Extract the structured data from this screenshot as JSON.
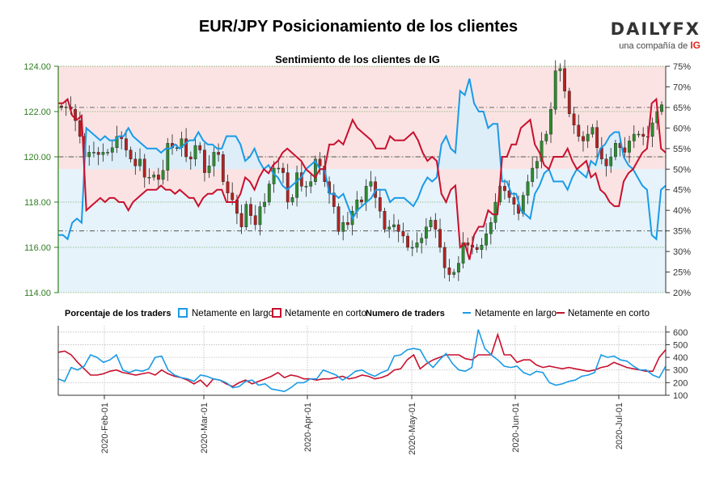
{
  "header": {
    "title": "EUR/JPY Posicionamiento de los clientes",
    "brand_name": "DAILYFX",
    "brand_sub": "una compañía de",
    "brand_ig": "IG"
  },
  "colors": {
    "long": "#1a9be6",
    "short": "#c8102e",
    "long_fill": "#e6f3fb",
    "short_fill": "#fbe3e3",
    "candle_up": "#2e8b2e",
    "candle_down": "#b22222",
    "axis_left": "#2e7d1f"
  },
  "chart_data": [
    {
      "type": "candlestick+line",
      "title": "Sentimiento de los clientes de IG",
      "y_left": {
        "ticks": [
          "114.00",
          "116.00",
          "118.00",
          "120.00",
          "122.00",
          "124.00"
        ],
        "range": [
          114,
          124
        ]
      },
      "y_right": {
        "ticks": [
          "20%",
          "25%",
          "30%",
          "35%",
          "40%",
          "45%",
          "50%",
          "55%",
          "60%",
          "65%",
          "70%",
          "75%"
        ],
        "range": [
          20,
          75
        ]
      },
      "x_range": [
        "2020-01-16",
        "2020-07-14"
      ],
      "price_daily_close": [
        122.2,
        122.2,
        122.1,
        121.6,
        120.9,
        120.0,
        120.2,
        120.2,
        120.1,
        120.2,
        120.2,
        120.4,
        120.9,
        120.8,
        120.3,
        119.9,
        119.6,
        119.9,
        119.1,
        119.1,
        119.2,
        119.0,
        119.4,
        120.6,
        120.4,
        120.4,
        120.8,
        120.0,
        119.9,
        120.5,
        120.3,
        119.3,
        119.6,
        120.2,
        120.1,
        118.9,
        118.4,
        118.1,
        117.5,
        116.9,
        117.9,
        117.4,
        117.0,
        117.8,
        118.0,
        118.8,
        119.5,
        119.5,
        119.3,
        118.0,
        118.2,
        119.3,
        118.7,
        118.7,
        118.9,
        119.9,
        119.6,
        118.9,
        118.4,
        117.8,
        116.7,
        117.1,
        117.0,
        117.6,
        118.1,
        118.0,
        118.7,
        118.9,
        118.2,
        117.6,
        116.8,
        116.9,
        117.0,
        116.7,
        116.5,
        116.0,
        116.0,
        116.2,
        116.4,
        116.9,
        117.2,
        116.8,
        116.0,
        115.1,
        114.8,
        114.9,
        115.3,
        116.2,
        116.1,
        116.0,
        115.9,
        116.1,
        116.6,
        117.1,
        118.0,
        118.7,
        118.5,
        118.2,
        117.9,
        117.5,
        118.3,
        118.9,
        119.5,
        119.8,
        120.7,
        121.0,
        122.1,
        123.8,
        123.9,
        122.9,
        121.9,
        121.4,
        120.9,
        120.7,
        121.0,
        121.3,
        120.4,
        119.9,
        119.6,
        120.0,
        120.6,
        120.4,
        120.2,
        120.7,
        121.0,
        121.0,
        120.9,
        120.9,
        121.5,
        122.0,
        122.3
      ],
      "long_pct_series": [
        "34",
        "34",
        "33",
        "37",
        "38",
        "37",
        "60",
        "59",
        "58",
        "57",
        "58",
        "57",
        "57",
        "58",
        "58",
        "60",
        "58",
        "57",
        "56",
        "55",
        "55",
        "55",
        "54",
        "55",
        "55",
        "56",
        "55",
        "56",
        "57",
        "57",
        "59",
        "57",
        "56",
        "56",
        "55",
        "55",
        "58",
        "58",
        "58",
        "56",
        "52",
        "53",
        "55",
        "52",
        "50",
        "51",
        "49",
        "48",
        "46",
        "45",
        "46",
        "47",
        "48",
        "50",
        "51",
        "52",
        "50",
        "50",
        "44",
        "44",
        "43",
        "44",
        "41",
        "38",
        "40",
        "41",
        "42",
        "43",
        "45",
        "45",
        "45",
        "42",
        "43",
        "43",
        "43",
        "42",
        "41",
        "43",
        "46",
        "48",
        "47",
        "48",
        "56",
        "58",
        "55",
        "54",
        "69",
        "68",
        "72",
        "66",
        "64",
        "64",
        "60",
        "61",
        "61",
        "47",
        "47",
        "44",
        "44",
        "40",
        "39",
        "38",
        "44",
        "46",
        "49",
        "50",
        "47",
        "47",
        "47",
        "45",
        "48",
        "50",
        "49",
        "48",
        "52",
        "51",
        "55",
        "56",
        "58",
        "59",
        "59",
        "53",
        "51",
        "50",
        "48",
        "46",
        "45",
        "34",
        "33",
        "45",
        "46"
      ],
      "short_pct_series": [
        "66",
        "66",
        "67",
        "63",
        "62",
        "63",
        "40",
        "41",
        "42",
        "43",
        "42",
        "43",
        "43",
        "42",
        "42",
        "40",
        "42",
        "43",
        "44",
        "45",
        "45",
        "45",
        "46",
        "45",
        "45",
        "44",
        "45",
        "44",
        "43",
        "43",
        "41",
        "43",
        "44",
        "44",
        "45",
        "45",
        "42",
        "42",
        "42",
        "44",
        "48",
        "47",
        "45",
        "48",
        "50",
        "49",
        "51",
        "52",
        "54",
        "55",
        "54",
        "53",
        "52",
        "50",
        "49",
        "48",
        "50",
        "50",
        "56",
        "56",
        "57",
        "56",
        "59",
        "62",
        "60",
        "59",
        "58",
        "57",
        "55",
        "55",
        "55",
        "58",
        "57",
        "57",
        "57",
        "58",
        "59",
        "57",
        "54",
        "52",
        "53",
        "52",
        "44",
        "42",
        "45",
        "46",
        "31",
        "32",
        "28",
        "34",
        "36",
        "36",
        "40",
        "39",
        "39",
        "53",
        "53",
        "56",
        "56",
        "60",
        "61",
        "62",
        "56",
        "54",
        "51",
        "50",
        "53",
        "53",
        "53",
        "55",
        "52",
        "50",
        "51",
        "52",
        "48",
        "49",
        "45",
        "44",
        "42",
        "41",
        "41",
        "47",
        "49",
        "50",
        "52",
        "54",
        "55",
        "66",
        "67",
        "55",
        "54"
      ]
    },
    {
      "type": "line",
      "y_ticks": [
        "100",
        "200",
        "300",
        "400",
        "500",
        "600"
      ],
      "y_range": [
        100,
        650
      ],
      "x_tick_labels": [
        "2020-Feb-01",
        "2020-Mar-01",
        "2020-Apr-01",
        "2020-May-01",
        "2020-Jun-01",
        "2020-Jul-01"
      ],
      "series": [
        {
          "name": "Netamente en largo",
          "values": [
            230,
            210,
            320,
            300,
            330,
            420,
            400,
            360,
            380,
            420,
            300,
            280,
            300,
            290,
            310,
            400,
            410,
            300,
            260,
            240,
            230,
            210,
            260,
            250,
            230,
            220,
            200,
            160,
            170,
            210,
            220,
            180,
            190,
            150,
            140,
            130,
            160,
            200,
            200,
            230,
            230,
            300,
            280,
            260,
            220,
            250,
            290,
            300,
            270,
            250,
            280,
            300,
            410,
            420,
            460,
            470,
            460,
            370,
            320,
            380,
            430,
            350,
            300,
            290,
            320,
            620,
            470,
            420,
            380,
            330,
            320,
            330,
            280,
            260,
            290,
            280,
            200,
            180,
            190,
            210,
            220,
            250,
            260,
            280,
            420,
            400,
            410,
            380,
            370,
            330,
            300,
            300,
            260,
            240,
            330
          ]
        },
        {
          "name": "Netamente en corto",
          "values": [
            440,
            450,
            420,
            360,
            310,
            260,
            260,
            270,
            290,
            300,
            280,
            270,
            260,
            270,
            280,
            260,
            300,
            270,
            250,
            240,
            220,
            190,
            220,
            170,
            230,
            220,
            190,
            170,
            200,
            220,
            190,
            210,
            230,
            250,
            280,
            240,
            260,
            250,
            230,
            230,
            220,
            230,
            230,
            240,
            250,
            230,
            240,
            260,
            250,
            230,
            240,
            260,
            300,
            310,
            380,
            420,
            310,
            350,
            380,
            400,
            420,
            420,
            420,
            390,
            380,
            420,
            420,
            420,
            580,
            420,
            420,
            360,
            380,
            380,
            340,
            320,
            330,
            320,
            310,
            320,
            310,
            300,
            290,
            300,
            320,
            330,
            360,
            340,
            320,
            310,
            300,
            290,
            290,
            400,
            460
          ]
        }
      ]
    }
  ],
  "legend": {
    "pct_title": "Porcentaje de los traders",
    "pct_long": "Netamente en largo",
    "pct_short": "Netamente en corto",
    "num_title": "Numero de traders",
    "num_long": "Netamente en largo",
    "num_short": "Netamente en corto"
  }
}
